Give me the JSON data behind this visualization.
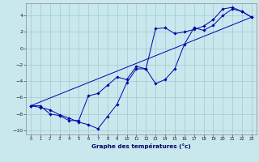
{
  "background_color": "#c8e8ee",
  "grid_color": "#a0c8cc",
  "line_color": "#0000aa",
  "xlabel": "Graphe des températures (°c)",
  "xlim": [
    -0.5,
    23.5
  ],
  "ylim": [
    -10.5,
    5.5
  ],
  "xticks": [
    0,
    1,
    2,
    3,
    4,
    5,
    6,
    7,
    8,
    9,
    10,
    11,
    12,
    13,
    14,
    15,
    16,
    17,
    18,
    19,
    20,
    21,
    22,
    23
  ],
  "yticks": [
    -10,
    -8,
    -6,
    -4,
    -2,
    0,
    2,
    4
  ],
  "line1_x": [
    0,
    1,
    2,
    3,
    4,
    5,
    6,
    7,
    8,
    9,
    10,
    11,
    12,
    13,
    14,
    15,
    16,
    17,
    18,
    19,
    20,
    21,
    22,
    23
  ],
  "line1_y": [
    -7.0,
    -7.2,
    -7.5,
    -8.1,
    -8.5,
    -9.0,
    -9.3,
    -9.8,
    -8.3,
    -6.8,
    -4.2,
    -2.5,
    -2.5,
    -4.3,
    -3.8,
    -2.5,
    0.5,
    2.5,
    2.2,
    2.8,
    4.0,
    4.8,
    4.5,
    3.8
  ],
  "line2_x": [
    0,
    1,
    2,
    3,
    4,
    5,
    6,
    7,
    8,
    9,
    10,
    11,
    12,
    13,
    14,
    15,
    16,
    17,
    18,
    19,
    20,
    21,
    22,
    23
  ],
  "line2_y": [
    -7.0,
    -7.0,
    -8.0,
    -8.2,
    -8.8,
    -8.8,
    -5.8,
    -5.5,
    -4.5,
    -3.5,
    -3.8,
    -2.2,
    -2.5,
    2.4,
    2.5,
    1.8,
    2.0,
    2.3,
    2.7,
    3.5,
    4.8,
    5.0,
    4.5,
    3.8
  ],
  "line3_x": [
    0,
    23
  ],
  "line3_y": [
    -7.0,
    3.8
  ]
}
